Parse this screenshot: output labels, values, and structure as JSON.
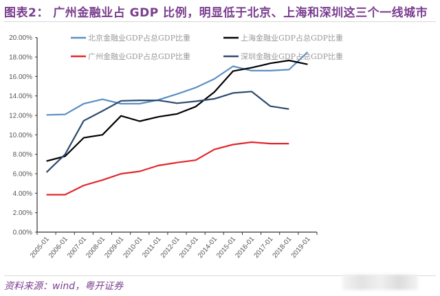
{
  "title": "图表2：  广州金融业占 GDP 比例，明显低于北京、上海和深圳这三个一线城市",
  "source": "资料来源：wind，粤开证券",
  "chart_data": {
    "type": "line",
    "title": "图表2：  广州金融业占 GDP 比例，明显低于北京、上海和深圳这三个一线城市",
    "xlabel": "",
    "ylabel": "",
    "ylim": [
      0,
      20
    ],
    "yticks": [
      "0.00%",
      "2.00%",
      "4.00%",
      "6.00%",
      "8.00%",
      "10.00%",
      "12.00%",
      "14.00%",
      "16.00%",
      "18.00%",
      "20.00%"
    ],
    "grid": false,
    "legend_placement": "top",
    "categories": [
      "2005-01",
      "2006-01",
      "2007-01",
      "2008-01",
      "2009-01",
      "2010-01",
      "2011-01",
      "2012-01",
      "2013-01",
      "2014-01",
      "2015-01",
      "2016-01",
      "2017-01",
      "2018-01",
      "2019-01"
    ],
    "series": [
      {
        "name": "北京金融业GDP占总GDP比重",
        "color": "#5b8ec4",
        "values": [
          12.05,
          12.1,
          13.2,
          13.65,
          13.2,
          13.2,
          13.6,
          14.2,
          14.85,
          15.75,
          17.05,
          16.6,
          16.6,
          16.7,
          18.5
        ]
      },
      {
        "name": "上海金融业GDP占总GDP比重",
        "color": "#000000",
        "values": [
          7.3,
          7.8,
          9.7,
          10.0,
          11.95,
          11.4,
          11.85,
          12.15,
          12.9,
          14.4,
          16.55,
          16.9,
          17.35,
          17.65,
          17.25
        ]
      },
      {
        "name": "广州金融业GDP占总GDP比重",
        "color": "#e3262b",
        "values": [
          3.85,
          3.85,
          4.8,
          5.35,
          6.0,
          6.25,
          6.85,
          7.15,
          7.4,
          8.5,
          9.0,
          9.25,
          9.1,
          9.1,
          null
        ]
      },
      {
        "name": "深圳金融业GDP占总GDP比重",
        "color": "#2c4a6e",
        "values": [
          6.15,
          8.0,
          11.45,
          12.45,
          13.5,
          13.55,
          13.55,
          13.25,
          13.45,
          13.7,
          14.3,
          14.45,
          12.95,
          12.65,
          null
        ]
      }
    ]
  }
}
